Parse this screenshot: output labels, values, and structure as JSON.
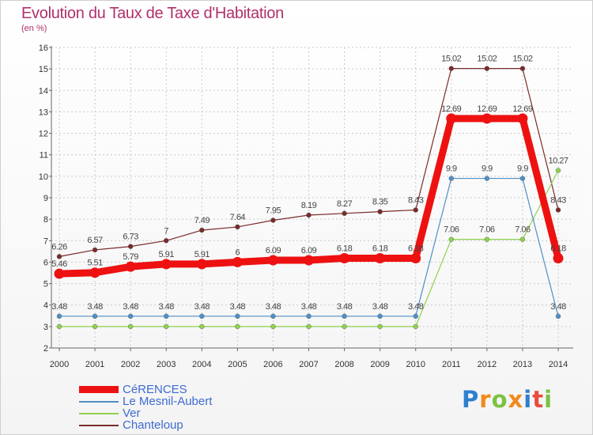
{
  "header": {
    "title": "Evolution du Taux de Taxe d'Habitation",
    "unit": "(en %)"
  },
  "chart_data": {
    "type": "line",
    "x": [
      "2000",
      "2001",
      "2002",
      "2003",
      "2004",
      "2005",
      "2006",
      "2007",
      "2008",
      "2009",
      "2010",
      "2011",
      "2012",
      "2013",
      "2014"
    ],
    "ylim": [
      2,
      16
    ],
    "yticks": [
      2,
      3,
      4,
      5,
      6,
      7,
      8,
      9,
      10,
      11,
      12,
      13,
      14,
      15,
      16
    ],
    "grid": true,
    "series": [
      {
        "name": "CéRENCES",
        "color": "#ee1111",
        "values": [
          5.46,
          5.51,
          5.79,
          5.91,
          5.91,
          6,
          6.09,
          6.09,
          6.18,
          6.18,
          6.18,
          12.69,
          12.69,
          12.69,
          6.18
        ],
        "labels": [
          "5.46",
          "5.51",
          "5.79",
          "5.91",
          "5.91",
          "6",
          "6.09",
          "6.09",
          "6.18",
          "6.18",
          "6.18",
          "12.69",
          "12.69",
          "12.69",
          "6.18"
        ]
      },
      {
        "name": "Le Mesnil-Aubert",
        "color": "#4f8fc6",
        "values": [
          3.48,
          3.48,
          3.48,
          3.48,
          3.48,
          3.48,
          3.48,
          3.48,
          3.48,
          3.48,
          3.48,
          9.9,
          9.9,
          9.9,
          3.48
        ],
        "labels": [
          "3.48",
          "3.48",
          "3.48",
          "3.48",
          "3.48",
          "3.48",
          "3.48",
          "3.48",
          "3.48",
          "3.48",
          "3.48",
          "9.9",
          "9.9",
          "9.9",
          "3.48"
        ]
      },
      {
        "name": "Ver",
        "color": "#8fd14f",
        "values": [
          3,
          3,
          3,
          3,
          3,
          3,
          3,
          3,
          3,
          3,
          3,
          7.06,
          7.06,
          7.06,
          10.27
        ],
        "labels": [
          "",
          "",
          "",
          "",
          "",
          "",
          "",
          "",
          "",
          "",
          "",
          "7.06",
          "7.06",
          "7.06",
          "10.27"
        ]
      },
      {
        "name": "Chanteloup",
        "color": "#7a2b2b",
        "values": [
          6.26,
          6.57,
          6.73,
          7,
          7.49,
          7.64,
          7.95,
          8.19,
          8.27,
          8.35,
          8.43,
          15.02,
          15.02,
          15.02,
          8.43
        ],
        "labels": [
          "6.26",
          "6.57",
          "6.73",
          "7",
          "7.49",
          "7.64",
          "7.95",
          "8.19",
          "8.27",
          "8.35",
          "8.43",
          "15.02",
          "15.02",
          "15.02",
          "8.43"
        ]
      }
    ]
  },
  "legend": {
    "items": [
      {
        "label": "CéRENCES",
        "color": "#ee1111"
      },
      {
        "label": "Le Mesnil-Aubert",
        "color": "#4f8fc6"
      },
      {
        "label": "Ver",
        "color": "#8fd14f"
      },
      {
        "label": "Chanteloup",
        "color": "#7a2b2b"
      }
    ]
  },
  "brand": {
    "letters": [
      "P",
      "r",
      "o",
      "x",
      "i",
      "t",
      "i"
    ],
    "colors": [
      "#2f7fd0",
      "#f08a1d",
      "#7cc242",
      "#f08a1d",
      "#2f7fd0",
      "#e74c3c",
      "#7cc242"
    ]
  }
}
